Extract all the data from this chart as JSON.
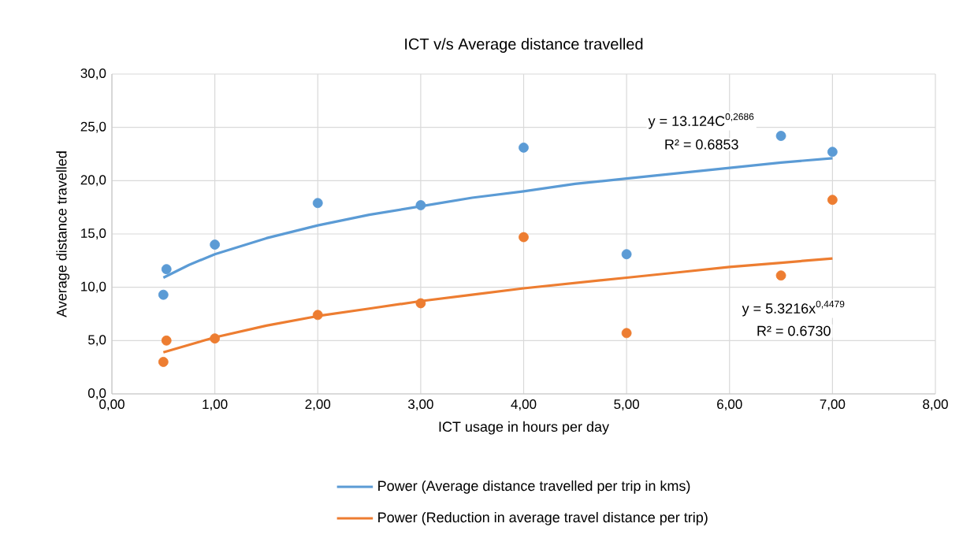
{
  "chart_data": {
    "type": "scatter",
    "title": "ICT v/s Average distance travelled",
    "xlabel": "ICT usage in hours per day",
    "ylabel": "Average distance travelled",
    "xlim": [
      0,
      8
    ],
    "ylim": [
      0,
      30
    ],
    "xticks": [
      {
        "value": 0,
        "label": "0,00"
      },
      {
        "value": 1,
        "label": "1,00"
      },
      {
        "value": 2,
        "label": "2,00"
      },
      {
        "value": 3,
        "label": "3,00"
      },
      {
        "value": 4,
        "label": "4,00"
      },
      {
        "value": 5,
        "label": "5,00"
      },
      {
        "value": 6,
        "label": "6,00"
      },
      {
        "value": 7,
        "label": "7,00"
      },
      {
        "value": 8,
        "label": "8,00"
      }
    ],
    "yticks": [
      {
        "value": 0,
        "label": "0,0"
      },
      {
        "value": 5,
        "label": "5,0"
      },
      {
        "value": 10,
        "label": "10,0"
      },
      {
        "value": 15,
        "label": "15,0"
      },
      {
        "value": 20,
        "label": "20,0"
      },
      {
        "value": 25,
        "label": "25,0"
      },
      {
        "value": 30,
        "label": "30,0"
      }
    ],
    "grid": true,
    "legend": "bottom",
    "marker": "circle",
    "series": [
      {
        "color": "#5b9bd5",
        "x": [
          0.5,
          0.53,
          1,
          2,
          3,
          4,
          5,
          6.5,
          7
        ],
        "values": [
          9.3,
          11.7,
          14.0,
          17.9,
          17.7,
          23.1,
          13.1,
          24.2,
          22.7
        ]
      },
      {
        "color": "#ed7d31",
        "x": [
          0.5,
          0.53,
          1,
          2,
          3,
          4,
          5,
          6.5,
          7
        ],
        "values": [
          3.0,
          5.0,
          5.2,
          7.4,
          8.5,
          14.7,
          5.7,
          11.1,
          18.2
        ]
      },
      {
        "type": "line",
        "marker": "none",
        "name": "Power (Average distance travelled per trip in kms)",
        "color": "#5b9bd5",
        "x": [
          0.5,
          0.75,
          1,
          1.5,
          2,
          2.5,
          3,
          3.5,
          4,
          4.5,
          5,
          5.5,
          6,
          6.5,
          7
        ],
        "values": [
          10.9,
          12.1,
          13.1,
          14.6,
          15.8,
          16.8,
          17.6,
          18.4,
          19.0,
          19.7,
          20.2,
          20.7,
          21.2,
          21.7,
          22.1
        ]
      },
      {
        "type": "line",
        "marker": "none",
        "name": "Power (Reduction in average travel distance per trip)",
        "color": "#ed7d31",
        "x": [
          0.5,
          0.75,
          1,
          1.5,
          2,
          2.5,
          3,
          3.5,
          4,
          4.5,
          5,
          5.5,
          6,
          6.5,
          7
        ],
        "values": [
          3.9,
          4.6,
          5.3,
          6.4,
          7.3,
          8.0,
          8.7,
          9.3,
          9.9,
          10.4,
          10.9,
          11.4,
          11.9,
          12.3,
          12.7
        ]
      }
    ],
    "annotations": [
      "y = 13.124C$^{0,2686}$",
      "R² = 0.6853",
      "y = 5.3216x$^{0,4479}$",
      "R² = 0.6730"
    ]
  }
}
